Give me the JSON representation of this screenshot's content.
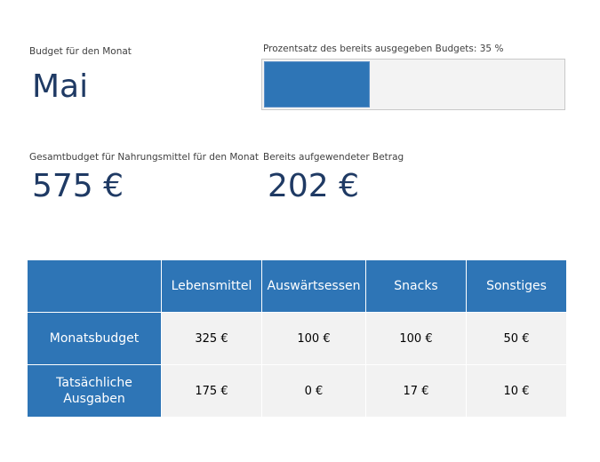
{
  "month": {
    "label": "Budget für den Monat",
    "value": "Mai"
  },
  "progress": {
    "label": "Prozentsatz des bereits ausgegeben Budgets: 35 %",
    "percent": 35,
    "color": "#2e75b6"
  },
  "total_budget": {
    "label": "Gesamtbudget für Nahrungsmittel für den Monat",
    "value": "575 €"
  },
  "spent": {
    "label": "Bereits aufgewendeter Betrag",
    "value": "202 €"
  },
  "table": {
    "columns": [
      "",
      "Lebensmittel",
      "Auswärtsessen",
      "Snacks",
      "Sonstiges"
    ],
    "rows": [
      {
        "label": "Monatsbudget",
        "values": [
          "325 €",
          "100 €",
          "100 €",
          "50 €"
        ]
      },
      {
        "label": "Tatsächliche Ausgaben",
        "values": [
          "175 €",
          "0 €",
          "17 €",
          "10 €"
        ]
      }
    ],
    "header_color": "#2e75b6",
    "cell_color": "#f2f2f2"
  }
}
